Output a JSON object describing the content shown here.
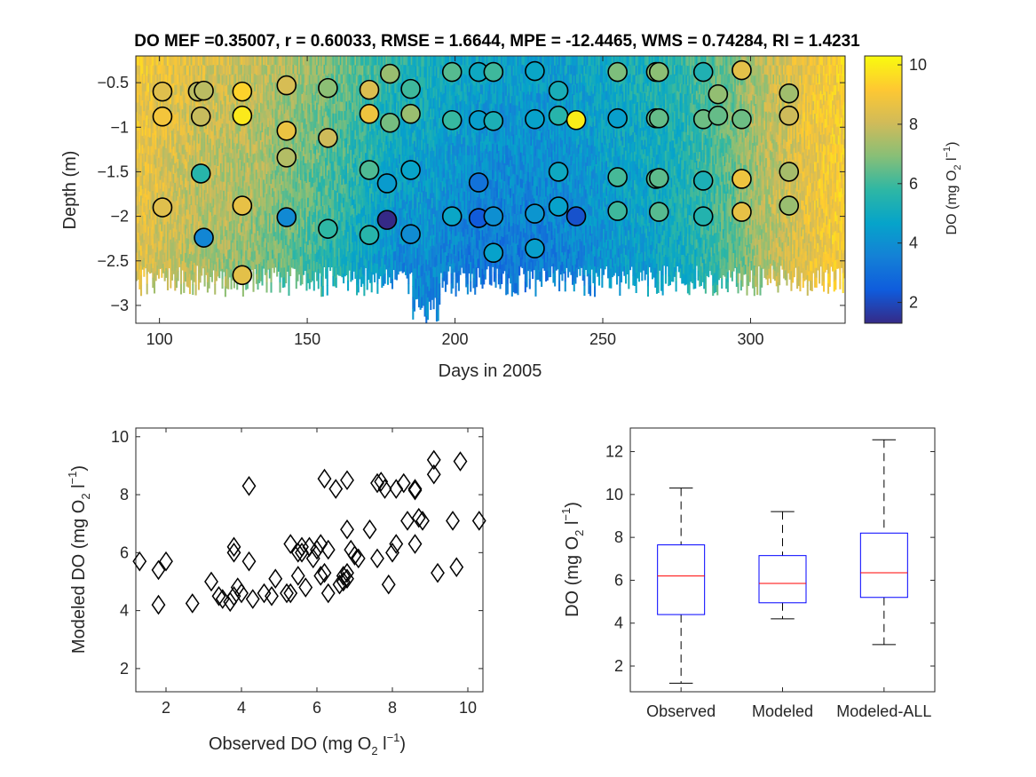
{
  "figure_title": "DO   MEF =0.35007, r = 0.60033, RMSE = 1.6644, MPE = -12.4465, WMS = 0.74284, RI = 1.4231",
  "colors": {
    "axis": "#262626",
    "box_outline": "#0000ff",
    "median": "#ff0000",
    "whisker": "#000000",
    "marker": "#000000",
    "parula": [
      "#352a87",
      "#0f5cdd",
      "#1481d6",
      "#06a4ca",
      "#2eb7a4",
      "#87bf77",
      "#d1bb59",
      "#fec832",
      "#f9fb0e"
    ]
  },
  "chart_data": [
    {
      "type": "heatmap",
      "subtype": "depth-time DO field with observation markers",
      "xlabel": "Days in 2005",
      "ylabel": "Depth (m)",
      "xlim": [
        92,
        332
      ],
      "ylim": [
        -3.2,
        -0.2
      ],
      "xticks": [
        100,
        150,
        200,
        250,
        300
      ],
      "yticks": [
        -0.5,
        -1,
        -1.5,
        -2,
        -2.5,
        -3
      ],
      "xtick_labels": [
        "100",
        "150",
        "200",
        "250",
        "300"
      ],
      "ytick_labels": [
        "−0.5",
        "−1",
        "−1.5",
        "−2",
        "−2.5",
        "−3"
      ],
      "colorbar": {
        "label_main": "DO (mg O",
        "label_sub": "2",
        "label_tail": " l",
        "label_sup": "−1",
        "label_close": ")",
        "clim": [
          1.3,
          10.3
        ],
        "ticks": [
          2,
          4,
          6,
          8,
          10
        ],
        "tick_labels": [
          "2",
          "4",
          "6",
          "8",
          "10"
        ]
      },
      "field_profile": {
        "days": [
          92,
          110,
          130,
          150,
          165,
          180,
          200,
          215,
          230,
          245,
          260,
          275,
          290,
          305,
          320,
          332
        ],
        "do_surface": [
          9.0,
          8.4,
          8.0,
          7.2,
          6.5,
          5.6,
          5.0,
          4.6,
          4.5,
          4.8,
          5.2,
          5.6,
          6.5,
          7.8,
          8.8,
          9.3
        ],
        "do_bottom": [
          8.4,
          7.6,
          7.0,
          6.0,
          5.0,
          3.8,
          3.4,
          3.2,
          3.3,
          3.8,
          4.4,
          5.0,
          6.0,
          7.5,
          8.6,
          9.0
        ]
      },
      "observations": [
        {
          "day": 101,
          "depth": -0.6,
          "do": 8.4
        },
        {
          "day": 101,
          "depth": -0.88,
          "do": 8.9
        },
        {
          "day": 101,
          "depth": -1.9,
          "do": 8.4
        },
        {
          "day": 113,
          "depth": -0.6,
          "do": 7.7
        },
        {
          "day": 114,
          "depth": -0.88,
          "do": 7.9
        },
        {
          "day": 114,
          "depth": -1.52,
          "do": 5.6
        },
        {
          "day": 115,
          "depth": -2.24,
          "do": 3.7
        },
        {
          "day": 115,
          "depth": -0.59,
          "do": 7.7
        },
        {
          "day": 128,
          "depth": -0.6,
          "do": 9.4
        },
        {
          "day": 128,
          "depth": -0.87,
          "do": 9.9
        },
        {
          "day": 128,
          "depth": -1.88,
          "do": 8.6
        },
        {
          "day": 128,
          "depth": -2.66,
          "do": 8.5
        },
        {
          "day": 143,
          "depth": -0.53,
          "do": 8.2
        },
        {
          "day": 143,
          "depth": -1.04,
          "do": 8.7
        },
        {
          "day": 143,
          "depth": -1.34,
          "do": 7.6
        },
        {
          "day": 143,
          "depth": -2.01,
          "do": 3.8
        },
        {
          "day": 157,
          "depth": -0.56,
          "do": 7.0
        },
        {
          "day": 157,
          "depth": -1.12,
          "do": 8.0
        },
        {
          "day": 157,
          "depth": -2.14,
          "do": 5.8
        },
        {
          "day": 171,
          "depth": -0.58,
          "do": 8.3
        },
        {
          "day": 171,
          "depth": -0.85,
          "do": 8.8
        },
        {
          "day": 171,
          "depth": -1.48,
          "do": 6.2
        },
        {
          "day": 171,
          "depth": -2.21,
          "do": 5.6
        },
        {
          "day": 178,
          "depth": -0.4,
          "do": 7.2
        },
        {
          "day": 178,
          "depth": -0.95,
          "do": 6.7
        },
        {
          "day": 177,
          "depth": -1.63,
          "do": 4.4
        },
        {
          "day": 177,
          "depth": -2.04,
          "do": 1.3
        },
        {
          "day": 185,
          "depth": -0.57,
          "do": 6.0
        },
        {
          "day": 185,
          "depth": -0.85,
          "do": 7.2
        },
        {
          "day": 185,
          "depth": -1.48,
          "do": 4.7
        },
        {
          "day": 185,
          "depth": -2.2,
          "do": 3.9
        },
        {
          "day": 199,
          "depth": -0.38,
          "do": 6.3
        },
        {
          "day": 199,
          "depth": -0.92,
          "do": 5.9
        },
        {
          "day": 199,
          "depth": -2.0,
          "do": 4.8
        },
        {
          "day": 208,
          "depth": -0.38,
          "do": 4.9
        },
        {
          "day": 208,
          "depth": -0.92,
          "do": 4.5
        },
        {
          "day": 208,
          "depth": -1.62,
          "do": 3.1
        },
        {
          "day": 208,
          "depth": -2.02,
          "do": 2.4
        },
        {
          "day": 213,
          "depth": -0.38,
          "do": 6.0
        },
        {
          "day": 213,
          "depth": -0.93,
          "do": 5.3
        },
        {
          "day": 213,
          "depth": -2.0,
          "do": 4.0
        },
        {
          "day": 213,
          "depth": -2.41,
          "do": 4.6
        },
        {
          "day": 227,
          "depth": -0.37,
          "do": 4.8
        },
        {
          "day": 227,
          "depth": -0.91,
          "do": 4.6
        },
        {
          "day": 227,
          "depth": -1.97,
          "do": 4.2
        },
        {
          "day": 227,
          "depth": -2.36,
          "do": 4.5
        },
        {
          "day": 235,
          "depth": -0.59,
          "do": 5.2
        },
        {
          "day": 235,
          "depth": -0.87,
          "do": 5.6
        },
        {
          "day": 235,
          "depth": -1.5,
          "do": 4.9
        },
        {
          "day": 235,
          "depth": -1.89,
          "do": 4.6
        },
        {
          "day": 241,
          "depth": -0.92,
          "do": 10.0
        },
        {
          "day": 241,
          "depth": -2.0,
          "do": 2.2
        },
        {
          "day": 255,
          "depth": -0.38,
          "do": 6.8
        },
        {
          "day": 255,
          "depth": -0.9,
          "do": 4.5
        },
        {
          "day": 255,
          "depth": -1.56,
          "do": 6.1
        },
        {
          "day": 255,
          "depth": -1.94,
          "do": 6.0
        },
        {
          "day": 268,
          "depth": -0.38,
          "do": 7.0
        },
        {
          "day": 268,
          "depth": -0.9,
          "do": 6.4
        },
        {
          "day": 268,
          "depth": -1.58,
          "do": 6.3
        },
        {
          "day": 269,
          "depth": -1.95,
          "do": 6.3
        },
        {
          "day": 269,
          "depth": -0.38,
          "do": 7.0
        },
        {
          "day": 269,
          "depth": -0.9,
          "do": 6.5
        },
        {
          "day": 269,
          "depth": -1.57,
          "do": 6.4
        },
        {
          "day": 284,
          "depth": -0.38,
          "do": 5.4
        },
        {
          "day": 284,
          "depth": -0.91,
          "do": 6.6
        },
        {
          "day": 284,
          "depth": -1.6,
          "do": 5.3
        },
        {
          "day": 284,
          "depth": -2.0,
          "do": 5.5
        },
        {
          "day": 289,
          "depth": -0.63,
          "do": 7.1
        },
        {
          "day": 289,
          "depth": -0.87,
          "do": 6.5
        },
        {
          "day": 297,
          "depth": -0.36,
          "do": 8.5
        },
        {
          "day": 297,
          "depth": -0.91,
          "do": 6.6
        },
        {
          "day": 297,
          "depth": -1.58,
          "do": 8.8
        },
        {
          "day": 297,
          "depth": -1.95,
          "do": 8.6
        },
        {
          "day": 313,
          "depth": -0.62,
          "do": 7.3
        },
        {
          "day": 313,
          "depth": -0.87,
          "do": 8.0
        },
        {
          "day": 313,
          "depth": -1.5,
          "do": 7.4
        },
        {
          "day": 313,
          "depth": -1.88,
          "do": 7.2
        }
      ]
    },
    {
      "type": "scatter",
      "marker": "diamond",
      "xlabel_main": "Observed DO (mg O",
      "ylabel_main": "Modeled DO (mg O",
      "label_sub": "2",
      "label_tail": " l",
      "label_sup": "−1",
      "label_close": ")",
      "xlim": [
        1.2,
        10.4
      ],
      "ylim": [
        1.2,
        10.3
      ],
      "xticks": [
        2,
        4,
        6,
        8,
        10
      ],
      "yticks": [
        2,
        4,
        6,
        8,
        10
      ],
      "xtick_labels": [
        "2",
        "4",
        "6",
        "8",
        "10"
      ],
      "ytick_labels": [
        "2",
        "4",
        "6",
        "8",
        "10"
      ],
      "points": [
        [
          1.3,
          5.7
        ],
        [
          1.8,
          5.4
        ],
        [
          1.8,
          4.2
        ],
        [
          2.0,
          5.7
        ],
        [
          2.7,
          4.25
        ],
        [
          3.2,
          5.0
        ],
        [
          3.4,
          4.5
        ],
        [
          3.5,
          4.4
        ],
        [
          3.7,
          4.3
        ],
        [
          3.8,
          4.5
        ],
        [
          3.8,
          6.2
        ],
        [
          3.8,
          6.0
        ],
        [
          3.9,
          4.8
        ],
        [
          4.0,
          4.6
        ],
        [
          4.2,
          5.7
        ],
        [
          4.2,
          8.3
        ],
        [
          4.3,
          4.4
        ],
        [
          4.6,
          4.6
        ],
        [
          4.8,
          4.5
        ],
        [
          4.9,
          5.1
        ],
        [
          5.2,
          4.6
        ],
        [
          5.3,
          4.6
        ],
        [
          5.3,
          6.3
        ],
        [
          5.5,
          5.2
        ],
        [
          5.5,
          6.0
        ],
        [
          5.6,
          6.2
        ],
        [
          5.6,
          6.0
        ],
        [
          5.7,
          4.8
        ],
        [
          5.8,
          6.2
        ],
        [
          5.9,
          5.8
        ],
        [
          6.0,
          6.1
        ],
        [
          6.1,
          5.2
        ],
        [
          6.1,
          6.3
        ],
        [
          6.2,
          5.3
        ],
        [
          6.2,
          8.55
        ],
        [
          6.3,
          6.1
        ],
        [
          6.3,
          4.6
        ],
        [
          6.5,
          8.2
        ],
        [
          6.6,
          4.9
        ],
        [
          6.7,
          5.0
        ],
        [
          6.7,
          5.2
        ],
        [
          6.8,
          5.1
        ],
        [
          6.8,
          5.3
        ],
        [
          6.8,
          6.8
        ],
        [
          6.8,
          8.5
        ],
        [
          6.9,
          6.1
        ],
        [
          7.0,
          5.9
        ],
        [
          7.1,
          5.8
        ],
        [
          7.4,
          6.8
        ],
        [
          7.6,
          5.8
        ],
        [
          7.6,
          8.4
        ],
        [
          7.7,
          8.45
        ],
        [
          7.8,
          8.2
        ],
        [
          7.9,
          4.9
        ],
        [
          8.0,
          6.0
        ],
        [
          8.1,
          8.2
        ],
        [
          8.1,
          6.3
        ],
        [
          8.3,
          8.4
        ],
        [
          8.4,
          7.1
        ],
        [
          8.6,
          8.2
        ],
        [
          8.6,
          8.15
        ],
        [
          8.6,
          6.3
        ],
        [
          8.7,
          7.2
        ],
        [
          8.8,
          7.1
        ],
        [
          9.1,
          8.7
        ],
        [
          9.1,
          9.2
        ],
        [
          9.2,
          5.3
        ],
        [
          9.6,
          7.1
        ],
        [
          9.7,
          5.5
        ],
        [
          9.8,
          9.15
        ],
        [
          10.3,
          7.1
        ]
      ]
    },
    {
      "type": "box",
      "ylabel_main": "DO (mg O",
      "label_sub": "2",
      "label_tail": " l",
      "label_sup": "−1",
      "label_close": ")",
      "categories": [
        "Observed",
        "Modeled",
        "Modeled-ALL"
      ],
      "ylim": [
        0.8,
        13.1
      ],
      "yticks": [
        2,
        4,
        6,
        8,
        10,
        12
      ],
      "ytick_labels": [
        "2",
        "4",
        "6",
        "8",
        "10",
        "12"
      ],
      "boxes": [
        {
          "min": 1.2,
          "q1": 4.4,
          "median": 6.2,
          "q3": 7.65,
          "max": 10.3
        },
        {
          "min": 4.2,
          "q1": 4.95,
          "median": 5.85,
          "q3": 7.15,
          "max": 9.2
        },
        {
          "min": 3.0,
          "q1": 5.2,
          "median": 6.35,
          "q3": 8.2,
          "max": 12.55
        }
      ]
    }
  ]
}
